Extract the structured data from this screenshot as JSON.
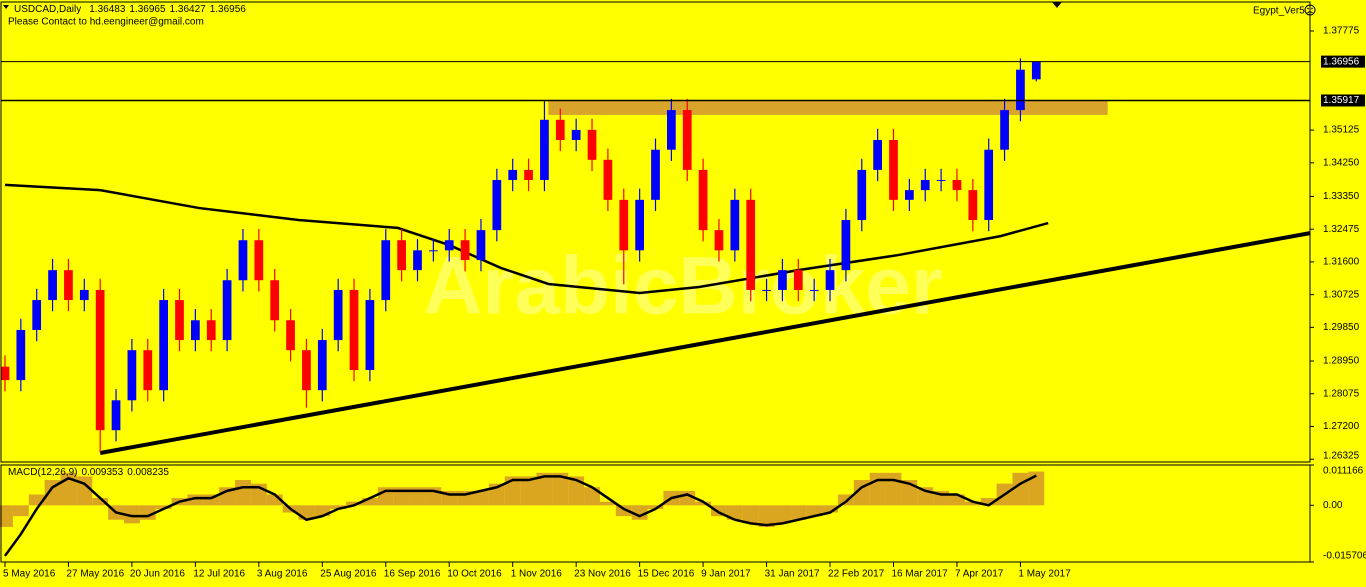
{
  "chart_data": [
    {
      "type": "candlestick",
      "title": "USDCAD,Daily",
      "subtitle": "Please Contact to hd.eengineer@gmail.com",
      "indicator": "Egypt_Ver5",
      "watermark": "ArabicBroker",
      "background": "#ffff00",
      "up_color": "#0000ff",
      "down_color": "#ff0000",
      "grid": false,
      "x": [
        0,
        4,
        8,
        12,
        16,
        20,
        24,
        28,
        32,
        36,
        40,
        44,
        48,
        52,
        56,
        60,
        64,
        68,
        72,
        76,
        80,
        84,
        88,
        92,
        96,
        100,
        104,
        108,
        112,
        116,
        120,
        124,
        128,
        132,
        136,
        140,
        144,
        148,
        152,
        156,
        160,
        164,
        168,
        172,
        176,
        180,
        184,
        188,
        192,
        196,
        200,
        204,
        208,
        212,
        216,
        220,
        224,
        228,
        232,
        236,
        240,
        244,
        248,
        252,
        256,
        260
      ],
      "open": [
        1.288,
        1.2844,
        1.2978,
        1.3058,
        1.3138,
        1.3058,
        1.3085,
        1.271,
        1.279,
        1.2924,
        1.2817,
        1.3058,
        1.2951,
        1.3004,
        1.2951,
        1.3111,
        1.3218,
        1.3111,
        1.3004,
        1.2924,
        1.2817,
        1.2951,
        1.3085,
        1.2871,
        1.3058,
        1.3218,
        1.3138,
        1.3191,
        1.3191,
        1.3218,
        1.3165,
        1.3245,
        1.3379,
        1.3406,
        1.3379,
        1.354,
        1.3486,
        1.3513,
        1.3433,
        1.3326,
        1.3191,
        1.3326,
        1.346,
        1.3566,
        1.3406,
        1.3245,
        1.3191,
        1.3326,
        1.3085,
        1.3085,
        1.3138,
        1.3085,
        1.3085,
        1.3138,
        1.3272,
        1.3406,
        1.3486,
        1.3326,
        1.3352,
        1.3379,
        1.3379,
        1.3352,
        1.3272,
        1.346,
        1.3566,
        1.36483
      ],
      "high": [
        1.291,
        1.3008,
        1.3088,
        1.3168,
        1.3168,
        1.3115,
        1.3115,
        1.282,
        1.2954,
        1.2954,
        1.3088,
        1.3088,
        1.3034,
        1.3034,
        1.3141,
        1.3248,
        1.3248,
        1.3141,
        1.3034,
        1.2954,
        1.2981,
        1.3115,
        1.3115,
        1.3088,
        1.3248,
        1.3248,
        1.3221,
        1.3221,
        1.3248,
        1.3248,
        1.3275,
        1.3409,
        1.3436,
        1.3436,
        1.3591,
        1.357,
        1.3543,
        1.3543,
        1.3463,
        1.3356,
        1.3356,
        1.349,
        1.3596,
        1.3596,
        1.3436,
        1.3275,
        1.3356,
        1.3356,
        1.3115,
        1.3168,
        1.3168,
        1.3115,
        1.3168,
        1.3302,
        1.3436,
        1.3516,
        1.3516,
        1.3382,
        1.3409,
        1.3409,
        1.3409,
        1.3382,
        1.349,
        1.3596,
        1.3704,
        1.36965
      ],
      "low": [
        1.2814,
        1.2814,
        1.2948,
        1.3028,
        1.3028,
        1.3028,
        1.265,
        1.268,
        1.276,
        1.2787,
        1.2787,
        1.2921,
        1.2921,
        1.2921,
        1.2921,
        1.3081,
        1.3081,
        1.2974,
        1.2894,
        1.277,
        1.2787,
        1.2921,
        1.2841,
        1.2841,
        1.3028,
        1.3108,
        1.3108,
        1.3161,
        1.3161,
        1.3135,
        1.3135,
        1.3215,
        1.3349,
        1.3349,
        1.3349,
        1.3456,
        1.3456,
        1.3403,
        1.3296,
        1.31,
        1.3161,
        1.3296,
        1.343,
        1.3376,
        1.3215,
        1.3161,
        1.3161,
        1.3055,
        1.3055,
        1.3055,
        1.3055,
        1.3055,
        1.3055,
        1.3108,
        1.3242,
        1.3376,
        1.3296,
        1.3296,
        1.3322,
        1.3349,
        1.3322,
        1.3242,
        1.3242,
        1.343,
        1.3536,
        1.36427
      ],
      "close": [
        1.2844,
        1.2978,
        1.3058,
        1.3138,
        1.3058,
        1.3085,
        1.271,
        1.279,
        1.2924,
        1.2817,
        1.3058,
        1.2951,
        1.3004,
        1.2951,
        1.3111,
        1.3218,
        1.3111,
        1.3004,
        1.2924,
        1.2817,
        1.2951,
        1.3085,
        1.2871,
        1.3058,
        1.3218,
        1.3138,
        1.3191,
        1.3191,
        1.3218,
        1.3165,
        1.3245,
        1.3379,
        1.3406,
        1.3379,
        1.354,
        1.3486,
        1.3513,
        1.3433,
        1.3326,
        1.3191,
        1.3326,
        1.346,
        1.3566,
        1.3406,
        1.3245,
        1.3191,
        1.3326,
        1.3085,
        1.3085,
        1.3138,
        1.3085,
        1.3085,
        1.3138,
        1.3272,
        1.3406,
        1.3486,
        1.3326,
        1.3352,
        1.3379,
        1.3379,
        1.3352,
        1.3272,
        1.346,
        1.3566,
        1.3674,
        1.36956
      ],
      "overlays": [
        {
          "color": "#000000",
          "width": 2.5,
          "x": [
            0,
            24,
            49,
            74,
            99,
            112,
            125,
            137,
            160,
            175,
            200,
            225,
            251,
            263
          ],
          "values": [
            1.3366,
            1.3352,
            1.3304,
            1.3272,
            1.3251,
            1.3205,
            1.3144,
            1.3101,
            1.3077,
            1.3093,
            1.3138,
            1.3178,
            1.3229,
            1.3264
          ]
        },
        {
          "color": "#000000",
          "width": 4,
          "x": [
            24,
            329
          ],
          "values": [
            1.2649,
            1.3237
          ]
        }
      ],
      "zone": {
        "color": "#d9a42a",
        "x": [
          137,
          278
        ],
        "values": [
          1.3553,
          1.3592
        ]
      },
      "hline": 1.35917,
      "xlim": [
        -1,
        329
      ],
      "xticks": [
        {
          "value": 0,
          "label": "5 May 2016"
        },
        {
          "value": 16,
          "label": "27 May 2016"
        },
        {
          "value": 32,
          "label": "20 Jun 2016"
        },
        {
          "value": 48,
          "label": "12 Jul 2016"
        },
        {
          "value": 64,
          "label": "3 Aug 2016"
        },
        {
          "value": 80,
          "label": "25 Aug 2016"
        },
        {
          "value": 96,
          "label": "16 Sep 2016"
        },
        {
          "value": 112,
          "label": "10 Oct 2016"
        },
        {
          "value": 128,
          "label": "1 Nov 2016"
        },
        {
          "value": 144,
          "label": "23 Nov 2016"
        },
        {
          "value": 160,
          "label": "15 Dec 2016"
        },
        {
          "value": 176,
          "label": "9 Jan 2017"
        },
        {
          "value": 192,
          "label": "31 Jan 2017"
        },
        {
          "value": 208,
          "label": "22 Feb 2017"
        },
        {
          "value": 224,
          "label": "16 Mar 2017"
        },
        {
          "value": 240,
          "label": "7 Apr 2017"
        },
        {
          "value": 256,
          "label": "1 May 2017"
        }
      ],
      "ylim": [
        1.2625,
        1.3855
      ],
      "yticks": [
        1.37775,
        1.35125,
        {
          "value": 1.3425,
          "label": "1.34250"
        },
        {
          "value": 1.3335,
          "label": "1.33350"
        },
        1.32475,
        {
          "value": 1.316,
          "label": "1.31600"
        },
        1.30725,
        {
          "value": 1.2985,
          "label": "1.29850"
        },
        {
          "value": 1.2895,
          "label": "1.28950"
        },
        1.28075,
        {
          "value": 1.272,
          "label": "1.27200"
        },
        1.26325
      ]
    },
    {
      "type": "macd",
      "title": "MACD(12,26,9)",
      "series": [
        {
          "style": "bar",
          "color": "#daa520",
          "values": [
            -0.006,
            -0.003,
            0.003,
            0.007,
            0.009,
            0.008,
            0.002,
            -0.004,
            -0.005,
            -0.004,
            -0.001,
            0.002,
            0.003,
            0.003,
            0.005,
            0.007,
            0.006,
            0.003,
            -0.002,
            -0.004,
            -0.003,
            -0.001,
            0.001,
            0.002,
            0.005,
            0.005,
            0.005,
            0.005,
            0.004,
            0.004,
            0.004,
            0.006,
            0.008,
            0.008,
            0.009,
            0.009,
            0.008,
            0.005,
            0.001,
            -0.003,
            -0.004,
            -0.001,
            0.004,
            0.004,
            0.001,
            -0.003,
            -0.004,
            -0.005,
            -0.006,
            -0.005,
            -0.004,
            -0.003,
            -0.002,
            0.003,
            0.007,
            0.009,
            0.009,
            0.007,
            0.005,
            0.004,
            0.003,
            0.001,
            0.002,
            0.006,
            0.009,
            0.009353
          ]
        },
        {
          "style": "line",
          "color": "#000000",
          "values": [
            -0.014,
            -0.008,
            -0.001,
            0.005,
            0.0075,
            0.006,
            0.002,
            -0.002,
            -0.003,
            -0.003,
            -0.001,
            0.001,
            0.002,
            0.002,
            0.004,
            0.005,
            0.005,
            0.003,
            -0.001,
            -0.004,
            -0.003,
            -0.001,
            0,
            0.002,
            0.004,
            0.004,
            0.004,
            0.004,
            0.003,
            0.003,
            0.004,
            0.005,
            0.007,
            0.007,
            0.008,
            0.008,
            0.007,
            0.005,
            0.002,
            -0.001,
            -0.003,
            -0.001,
            0.002,
            0.003,
            0.001,
            -0.002,
            -0.004,
            -0.005,
            -0.0055,
            -0.005,
            -0.004,
            -0.003,
            -0.002,
            0.001,
            0.005,
            0.007,
            0.007,
            0.006,
            0.004,
            0.003,
            0.003,
            0.001,
            0,
            0.003,
            0.006,
            0.008235
          ]
        }
      ],
      "ylim": [
        -0.015706,
        0.011166
      ],
      "yticks": [
        0.011166,
        {
          "value": 0,
          "label": "0.00"
        },
        -0.015706
      ]
    }
  ]
}
